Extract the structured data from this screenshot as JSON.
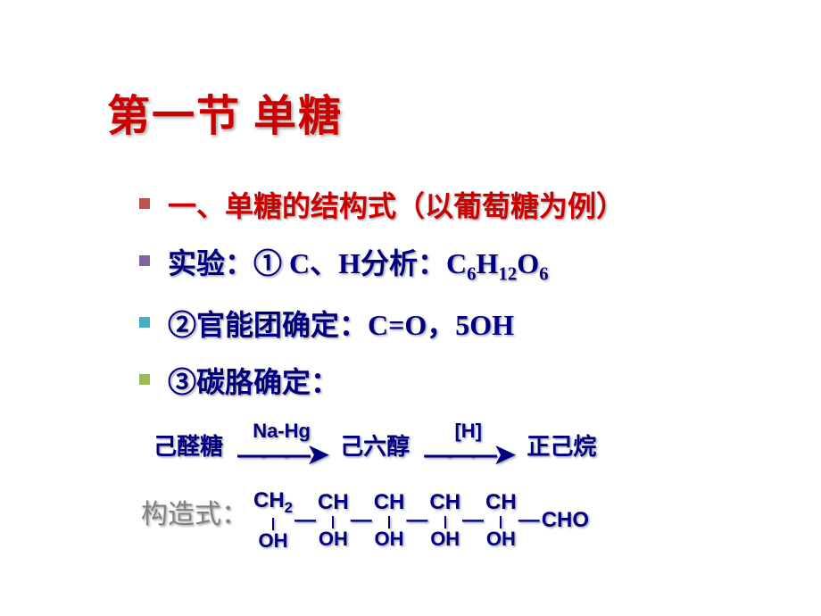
{
  "title": "第一节  单糖",
  "bullets": {
    "b1": {
      "color": "#cc0000",
      "text": "一、单糖的结构式（以葡萄糖为例）"
    },
    "b2": {
      "color": "#000080",
      "prefix": "实验：① C、H分析：C",
      "s1": "6",
      "mid1": "H",
      "s2": "12",
      "mid2": "O",
      "s3": "6"
    },
    "b3": {
      "color": "#000080",
      "text": "②官能团确定：C=O，5OH"
    },
    "b4": {
      "color": "#000080",
      "text": "③碳胳确定："
    }
  },
  "bullet_colors": {
    "b1": "#c0504d",
    "b2": "#8064a2",
    "b3": "#4bacc6",
    "b4": "#9bbb59"
  },
  "reaction": {
    "t1": "己醛糖",
    "a1_label": "Na-Hg",
    "t2": "己六醇",
    "a2_label": "[H]",
    "t3": "正己烷",
    "arrow_glyph": "———➤"
  },
  "struct": {
    "label": "构造式：",
    "label_color": "#808080",
    "c1": "CH",
    "c1_sub": "2",
    "c2": "CH",
    "c3": "CH",
    "c4": "CH",
    "c5": "CH",
    "c6": "CHO",
    "oh": "OH",
    "bond": "—"
  },
  "colors": {
    "title": "#cc0000",
    "navy": "#000080",
    "gray": "#808080",
    "bg": "#ffffff"
  }
}
